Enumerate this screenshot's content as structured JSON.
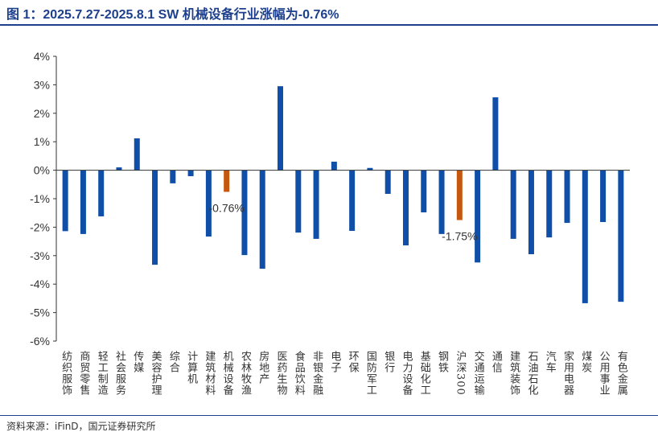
{
  "title": "图 1：2025.7.27-2025.8.1 SW 机械设备行业涨幅为-0.76%",
  "source": "资料来源：iFinD，国元证券研究所",
  "chart_data": {
    "type": "bar",
    "ylim": [
      -6,
      4
    ],
    "yticks": [
      "-6%",
      "-5%",
      "-4%",
      "-3%",
      "-2%",
      "-1%",
      "0%",
      "1%",
      "2%",
      "3%",
      "4%"
    ],
    "grid": false,
    "colors": {
      "default": "#0f4fa8",
      "highlight": "#c5570f"
    },
    "categories": [
      "纺织服饰",
      "商贸零售",
      "轻工制造",
      "社会服务",
      "传媒",
      "美容护理",
      "综合",
      "计算机",
      "建筑材料",
      "机械设备",
      "农林牧渔",
      "房地产",
      "医药生物",
      "食品饮料",
      "非银金融",
      "电子",
      "环保",
      "国防军工",
      "银行",
      "电力设备",
      "基础化工",
      "钢铁",
      "沪深300",
      "交通运输",
      "通信",
      "建筑装饰",
      "石油石化",
      "汽车",
      "家用电器",
      "煤炭",
      "公用事业",
      "有色金属"
    ],
    "values": [
      -2.14,
      -2.24,
      -1.62,
      0.1,
      1.12,
      -3.32,
      -0.46,
      -0.21,
      -2.33,
      -0.76,
      -2.98,
      -3.46,
      2.95,
      -2.19,
      -2.41,
      0.3,
      -2.13,
      0.08,
      -0.83,
      -2.64,
      -1.48,
      -2.24,
      -1.75,
      -3.24,
      2.56,
      -2.41,
      -2.95,
      -2.36,
      -1.85,
      -4.67,
      -1.82,
      -4.62
    ],
    "highlighted": [
      "机械设备",
      "沪深300"
    ],
    "data_labels": [
      {
        "category": "机械设备",
        "text": "-0.76%"
      },
      {
        "category": "沪深300",
        "text": "-1.75%"
      }
    ]
  }
}
